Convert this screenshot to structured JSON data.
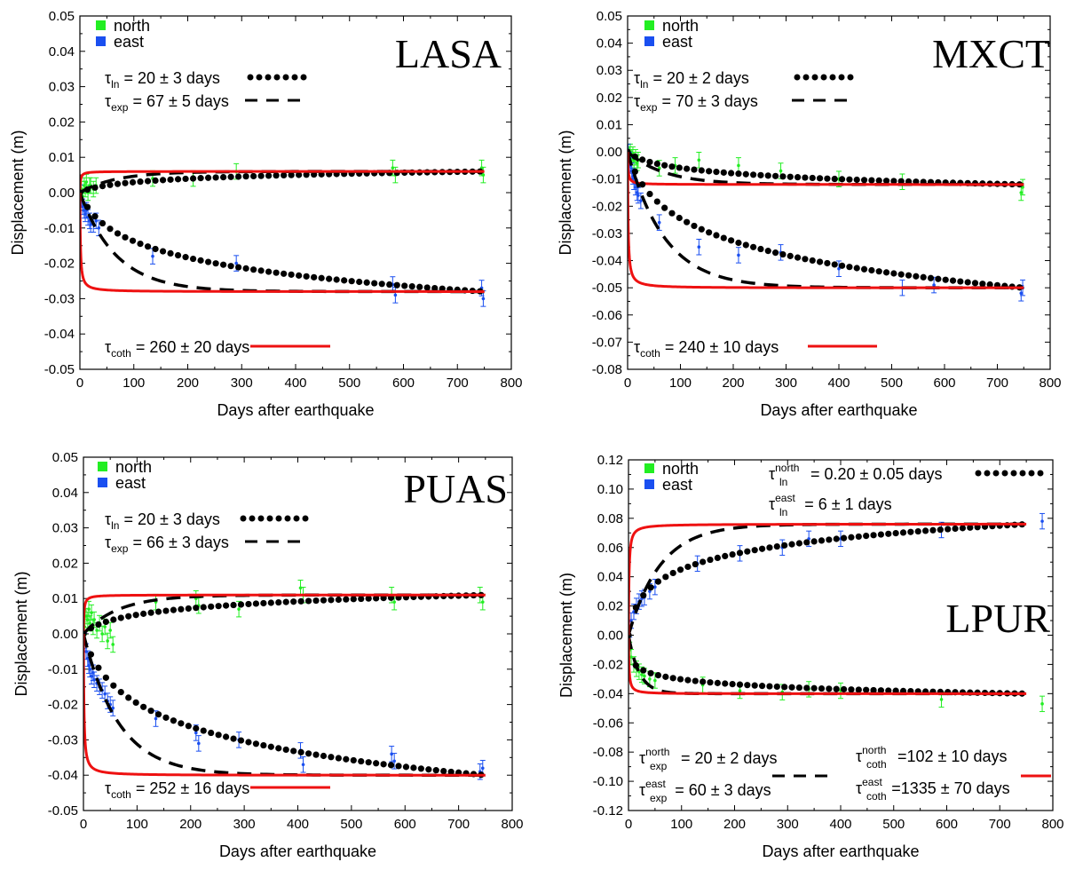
{
  "colors": {
    "north": "#22ee22",
    "east": "#1a4ff0",
    "coth": "#ee1111",
    "ln": "#000000",
    "exp": "#000000"
  },
  "legend_markers": {
    "north": "north",
    "east": "east"
  },
  "chart_data": [
    {
      "type": "line",
      "station": "LASA",
      "xlabel": "Days after earthquake",
      "ylabel": "Displacement (m)",
      "xlim": [
        0,
        800
      ],
      "ylim": [
        -0.05,
        0.05
      ],
      "xticks": [
        "0",
        "100",
        "200",
        "300",
        "400",
        "500",
        "600",
        "700",
        "800"
      ],
      "yticks": [
        "-0.05",
        "-0.04",
        "-0.03",
        "-0.02",
        "-0.01",
        "0.00",
        "0.01",
        "0.02",
        "0.03",
        "0.04",
        "0.05"
      ],
      "annotations": {
        "ln": {
          "sym": "τ",
          "sub": "ln",
          "rest": " = 20 ±  3 days"
        },
        "exp": {
          "sym": "τ",
          "sub": "exp",
          "rest": " = 67 ±  5 days"
        },
        "coth": {
          "sym": "τ",
          "sub": "coth",
          "rest": " = 260 ± 20 days"
        }
      },
      "series": [
        {
          "key": "north",
          "A": 0.006,
          "tau_ln": 20,
          "tau_exp": 67,
          "tau_coth": 260,
          "obs": [
            [
              1,
              0.0
            ],
            [
              3,
              0.001
            ],
            [
              5,
              -0.001
            ],
            [
              8,
              0.002
            ],
            [
              10,
              0.001
            ],
            [
              12,
              0.003
            ],
            [
              15,
              0.0
            ],
            [
              18,
              0.002
            ],
            [
              20,
              0.002
            ],
            [
              25,
              0.001
            ],
            [
              30,
              0.002
            ],
            [
              135,
              0.004
            ],
            [
              210,
              0.004
            ],
            [
              290,
              0.006
            ],
            [
              580,
              0.007
            ],
            [
              585,
              0.005
            ],
            [
              745,
              0.007
            ],
            [
              748,
              0.005
            ]
          ]
        },
        {
          "key": "east",
          "A": -0.028,
          "tau_ln": 20,
          "tau_exp": 67,
          "tau_coth": 260,
          "obs": [
            [
              1,
              0.0
            ],
            [
              3,
              -0.002
            ],
            [
              5,
              -0.004
            ],
            [
              8,
              -0.005
            ],
            [
              10,
              -0.006
            ],
            [
              12,
              -0.005
            ],
            [
              15,
              -0.007
            ],
            [
              18,
              -0.008
            ],
            [
              20,
              -0.009
            ],
            [
              25,
              -0.009
            ],
            [
              30,
              -0.008
            ],
            [
              35,
              -0.01
            ],
            [
              135,
              -0.018
            ],
            [
              290,
              -0.02
            ],
            [
              580,
              -0.026
            ],
            [
              585,
              -0.029
            ],
            [
              745,
              -0.027
            ],
            [
              748,
              -0.03
            ]
          ]
        }
      ]
    },
    {
      "type": "line",
      "station": "MXCT",
      "xlabel": "Days after earthquake",
      "ylabel": "Displacement (m)",
      "xlim": [
        0,
        800
      ],
      "ylim": [
        -0.08,
        0.05
      ],
      "xticks": [
        "0",
        "100",
        "200",
        "300",
        "400",
        "500",
        "600",
        "700",
        "800"
      ],
      "yticks": [
        "-0.08",
        "-0.07",
        "-0.06",
        "-0.05",
        "-0.04",
        "-0.03",
        "-0.02",
        "-0.01",
        "0.00",
        "0.01",
        "0.02",
        "0.03",
        "0.04",
        "0.05"
      ],
      "annotations": {
        "ln": {
          "sym": "τ",
          "sub": "ln",
          "rest": " = 20 ±  2 days"
        },
        "exp": {
          "sym": "τ",
          "sub": "exp",
          "rest": " = 70 ±  3 days"
        },
        "coth": {
          "sym": "τ",
          "sub": "coth",
          "rest": " = 240 ± 10 days"
        }
      },
      "series": [
        {
          "key": "north",
          "A": -0.012,
          "tau_ln": 20,
          "tau_exp": 70,
          "tau_coth": 240,
          "obs": [
            [
              1,
              0.0
            ],
            [
              3,
              -0.001
            ],
            [
              5,
              0.0
            ],
            [
              8,
              -0.002
            ],
            [
              10,
              -0.001
            ],
            [
              12,
              -0.003
            ],
            [
              15,
              -0.002
            ],
            [
              18,
              -0.004
            ],
            [
              20,
              -0.003
            ],
            [
              60,
              -0.006
            ],
            [
              90,
              -0.005
            ],
            [
              135,
              -0.003
            ],
            [
              210,
              -0.005
            ],
            [
              290,
              -0.007
            ],
            [
              400,
              -0.01
            ],
            [
              520,
              -0.011
            ],
            [
              745,
              -0.015
            ],
            [
              748,
              -0.013
            ]
          ]
        },
        {
          "key": "east",
          "A": -0.05,
          "tau_ln": 20,
          "tau_exp": 70,
          "tau_coth": 240,
          "obs": [
            [
              1,
              0.0
            ],
            [
              3,
              -0.003
            ],
            [
              5,
              -0.005
            ],
            [
              8,
              -0.007
            ],
            [
              10,
              -0.009
            ],
            [
              12,
              -0.011
            ],
            [
              15,
              -0.013
            ],
            [
              18,
              -0.015
            ],
            [
              20,
              -0.016
            ],
            [
              25,
              -0.018
            ],
            [
              60,
              -0.026
            ],
            [
              135,
              -0.035
            ],
            [
              210,
              -0.038
            ],
            [
              290,
              -0.037
            ],
            [
              400,
              -0.043
            ],
            [
              520,
              -0.05
            ],
            [
              580,
              -0.049
            ],
            [
              745,
              -0.052
            ],
            [
              748,
              -0.05
            ]
          ]
        }
      ]
    },
    {
      "type": "line",
      "station": "PUAS",
      "xlabel": "Days after earthquake",
      "ylabel": "Displacement (m)",
      "xlim": [
        0,
        800
      ],
      "ylim": [
        -0.05,
        0.05
      ],
      "xticks": [
        "0",
        "100",
        "200",
        "300",
        "400",
        "500",
        "600",
        "700",
        "800"
      ],
      "yticks": [
        "-0.05",
        "-0.04",
        "-0.03",
        "-0.02",
        "-0.01",
        "0.00",
        "0.01",
        "0.02",
        "0.03",
        "0.04",
        "0.05"
      ],
      "annotations": {
        "ln": {
          "sym": "τ",
          "sub": "ln",
          "rest": " = 20 ± 3 days"
        },
        "exp": {
          "sym": "τ",
          "sub": "exp",
          "rest": " = 66 ±  3 days"
        },
        "coth": {
          "sym": "τ",
          "sub": "coth",
          "rest": " = 252 ± 16 days"
        }
      },
      "series": [
        {
          "key": "north",
          "A": 0.011,
          "tau_ln": 20,
          "tau_exp": 66,
          "tau_coth": 252,
          "obs": [
            [
              2,
              0.002
            ],
            [
              5,
              0.005
            ],
            [
              8,
              0.004
            ],
            [
              10,
              0.007
            ],
            [
              12,
              0.003
            ],
            [
              15,
              0.006
            ],
            [
              18,
              0.002
            ],
            [
              20,
              0.004
            ],
            [
              25,
              0.001
            ],
            [
              30,
              0.003
            ],
            [
              35,
              0.0
            ],
            [
              40,
              0.002
            ],
            [
              45,
              -0.002
            ],
            [
              50,
              0.001
            ],
            [
              55,
              -0.003
            ],
            [
              135,
              0.009
            ],
            [
              210,
              0.01
            ],
            [
              215,
              0.008
            ],
            [
              290,
              0.007
            ],
            [
              405,
              0.013
            ],
            [
              410,
              0.011
            ],
            [
              575,
              0.011
            ],
            [
              580,
              0.009
            ],
            [
              740,
              0.011
            ],
            [
              745,
              0.009
            ]
          ]
        },
        {
          "key": "east",
          "A": -0.04,
          "tau_ln": 20,
          "tau_exp": 66,
          "tau_coth": 252,
          "obs": [
            [
              2,
              -0.002
            ],
            [
              5,
              -0.005
            ],
            [
              8,
              -0.007
            ],
            [
              10,
              -0.009
            ],
            [
              12,
              -0.01
            ],
            [
              15,
              -0.012
            ],
            [
              18,
              -0.011
            ],
            [
              20,
              -0.013
            ],
            [
              25,
              -0.014
            ],
            [
              30,
              -0.015
            ],
            [
              35,
              -0.016
            ],
            [
              40,
              -0.017
            ],
            [
              45,
              -0.019
            ],
            [
              50,
              -0.02
            ],
            [
              55,
              -0.021
            ],
            [
              135,
              -0.024
            ],
            [
              210,
              -0.028
            ],
            [
              215,
              -0.031
            ],
            [
              290,
              -0.03
            ],
            [
              405,
              -0.033
            ],
            [
              410,
              -0.037
            ],
            [
              575,
              -0.034
            ],
            [
              580,
              -0.036
            ],
            [
              740,
              -0.039
            ],
            [
              745,
              -0.038
            ]
          ]
        }
      ]
    },
    {
      "type": "line",
      "station": "LPUR",
      "xlabel": "Days after earthquake",
      "ylabel": "Displacement (m)",
      "xlim": [
        0,
        800
      ],
      "ylim": [
        -0.12,
        0.12
      ],
      "xticks": [
        "0",
        "100",
        "200",
        "300",
        "400",
        "500",
        "600",
        "700",
        "800"
      ],
      "yticks": [
        "-0.12",
        "-0.10",
        "-0.08",
        "-0.06",
        "-0.04",
        "-0.02",
        "0.00",
        "0.02",
        "0.04",
        "0.06",
        "0.08",
        "0.10",
        "0.12"
      ],
      "annotations": {
        "ln_north": {
          "sym": "τ",
          "sup": "north",
          "sub": "ln",
          "rest": "= 0.20 ± 0.05 days"
        },
        "ln_east": {
          "sym": "τ",
          "sup": "east",
          "sub": "ln",
          "rest": "= 6 ± 1 days"
        },
        "exp_north": {
          "sym": "τ",
          "sup": "north",
          "sub": "exp",
          "rest": "= 20 ± 2 days"
        },
        "exp_east": {
          "sym": "τ",
          "sup": "east",
          "sub": "exp",
          "rest": "= 60 ± 3 days"
        },
        "coth_north": {
          "sym": "τ",
          "sup": "north",
          "sub": "coth",
          "rest": "=102 ± 10 days"
        },
        "coth_east": {
          "sym": "τ",
          "sup": "east",
          "sub": "coth",
          "rest": "=1335 ±  70 days"
        }
      },
      "series": [
        {
          "key": "north",
          "A": -0.04,
          "tau_ln": 0.2,
          "tau_exp": 20,
          "tau_coth": 102,
          "obs": [
            [
              2,
              -0.01
            ],
            [
              5,
              -0.015
            ],
            [
              10,
              -0.02
            ],
            [
              15,
              -0.023
            ],
            [
              20,
              -0.025
            ],
            [
              25,
              -0.027
            ],
            [
              30,
              -0.028
            ],
            [
              40,
              -0.03
            ],
            [
              50,
              -0.031
            ],
            [
              140,
              -0.034
            ],
            [
              210,
              -0.038
            ],
            [
              290,
              -0.039
            ],
            [
              340,
              -0.037
            ],
            [
              400,
              -0.038
            ],
            [
              590,
              -0.044
            ],
            [
              780,
              -0.047
            ]
          ]
        },
        {
          "key": "east",
          "A": 0.076,
          "tau_ln": 6,
          "tau_exp": 60,
          "tau_coth": 1335,
          "obs": [
            [
              2,
              0.004
            ],
            [
              5,
              0.01
            ],
            [
              10,
              0.016
            ],
            [
              15,
              0.02
            ],
            [
              20,
              0.023
            ],
            [
              25,
              0.025
            ],
            [
              30,
              0.026
            ],
            [
              40,
              0.03
            ],
            [
              50,
              0.033
            ],
            [
              130,
              0.049
            ],
            [
              210,
              0.056
            ],
            [
              290,
              0.06
            ],
            [
              340,
              0.066
            ],
            [
              400,
              0.066
            ],
            [
              590,
              0.072
            ],
            [
              780,
              0.078
            ]
          ]
        }
      ]
    }
  ]
}
